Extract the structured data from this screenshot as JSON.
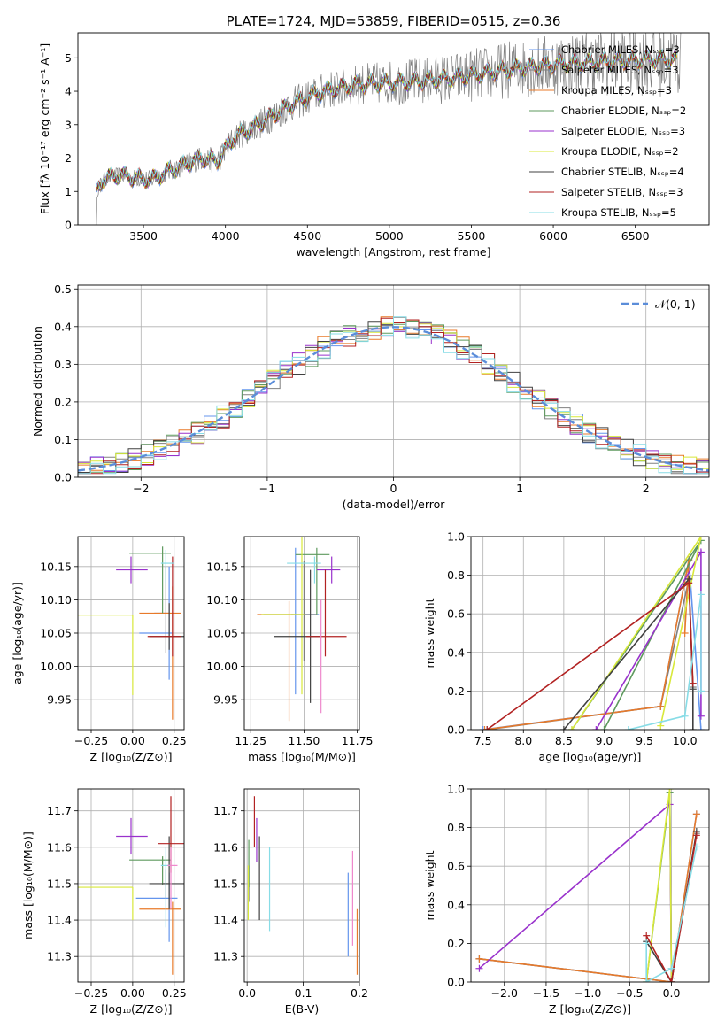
{
  "chart_data": [
    {
      "id": "spectrum",
      "type": "line",
      "title": "PLATE=1724, MJD=53859, FIBERID=0515, z=0.36",
      "xlabel": "wavelength [Angstrom, rest frame]",
      "ylabel": "Flux [fλ 10⁻¹⁷ erg cm⁻² s⁻¹ A⁻¹]",
      "xlim": [
        3100,
        6950
      ],
      "ylim": [
        0,
        5.75
      ],
      "xticks": [
        3500,
        4000,
        4500,
        5000,
        5500,
        6000,
        6500
      ],
      "yticks": [
        0,
        1,
        2,
        3,
        4,
        5
      ],
      "grid": false,
      "legend": "top-right",
      "continuum_points": {
        "x": [
          3210,
          3250,
          3350,
          3450,
          3550,
          3650,
          3750,
          3850,
          3950,
          4050,
          4200,
          4400,
          4600,
          4800,
          5000,
          5200,
          5400,
          5600,
          5800,
          6000,
          6200,
          6400,
          6600,
          6750
        ],
        "y": [
          0.95,
          1.35,
          1.5,
          1.4,
          1.35,
          1.6,
          1.8,
          2.0,
          1.9,
          2.6,
          3.0,
          3.6,
          4.0,
          4.2,
          4.25,
          4.3,
          4.4,
          4.55,
          4.7,
          4.8,
          4.85,
          4.9,
          4.95,
          4.95
        ]
      },
      "models": [
        {
          "name": "Chabrier MILES, Nₛₛₚ=3",
          "color": "#6495ed"
        },
        {
          "name": "Salpeter MILES, Nₛₛₚ=3",
          "color": "#808080"
        },
        {
          "name": "Kroupa MILES, Nₛₛₚ=3",
          "color": "#e87a2a"
        },
        {
          "name": "Chabrier ELODIE, Nₛₛₚ=2",
          "color": "#5e9a5e"
        },
        {
          "name": "Salpeter ELODIE, Nₛₛₚ=3",
          "color": "#9932cc"
        },
        {
          "name": "Kroupa ELODIE, Nₛₛₚ=2",
          "color": "#d8e83a"
        },
        {
          "name": "Chabrier STELIB, Nₛₛₚ=4",
          "color": "#404040"
        },
        {
          "name": "Salpeter STELIB, Nₛₛₚ=3",
          "color": "#b22222"
        },
        {
          "name": "Kroupa STELIB, Nₛₛₚ=5",
          "color": "#87dce6"
        }
      ]
    },
    {
      "id": "residuals",
      "type": "histogram",
      "xlabel": "(data-model)/error",
      "ylabel": "Normed distribution",
      "xlim": [
        -2.5,
        2.5
      ],
      "ylim": [
        0,
        0.51
      ],
      "xticks": [
        -2,
        -1,
        0,
        1,
        2
      ],
      "yticks": [
        0.0,
        0.1,
        0.2,
        0.3,
        0.4,
        0.5
      ],
      "grid": true,
      "legend": "top-right",
      "gauss_label": "𝒩(0, 1)",
      "gauss_color": "#5b8dd9",
      "bin_width": 0.1
    },
    {
      "id": "age-vs-Z",
      "type": "errorbar",
      "xlabel": "Z [log₁₀(Z/Z⊙)]",
      "ylabel": "age  [log₁₀(age/yr)]",
      "xlim": [
        -0.33,
        0.31
      ],
      "ylim": [
        9.905,
        10.195
      ],
      "xticks": [
        -0.25,
        0.0,
        0.25
      ],
      "yticks": [
        9.95,
        10.0,
        10.05,
        10.1,
        10.15
      ],
      "grid": true,
      "points": [
        {
          "color": "#6495ed",
          "x": 0.22,
          "xerr": [
            0.18,
            0.02
          ],
          "y": 10.05,
          "yerr": [
            0.07,
            0.1
          ]
        },
        {
          "color": "#808080",
          "x": 0.2,
          "xerr": [
            0.07,
            0.02
          ],
          "y": 10.08,
          "yerr": [
            0.06,
            0.07
          ]
        },
        {
          "color": "#e87a2a",
          "x": 0.24,
          "xerr": [
            0.2,
            0.05
          ],
          "y": 10.08,
          "yerr": [
            0.16,
            0.04
          ]
        },
        {
          "color": "#5e9a5e",
          "x": 0.18,
          "xerr": [
            0.2,
            0.05
          ],
          "y": 10.17,
          "yerr": [
            0.09,
            0.01
          ]
        },
        {
          "color": "#9932cc",
          "x": -0.01,
          "xerr": [
            0.09,
            0.1
          ],
          "y": 10.145,
          "yerr": [
            0.02,
            0.02
          ]
        },
        {
          "color": "#d8e83a",
          "x": 0.0,
          "xerr": [
            0.39,
            0.0
          ],
          "y": 10.077,
          "yerr": [
            0.12,
            0.0
          ]
        },
        {
          "color": "#404040",
          "x": 0.22,
          "xerr": [
            0.12,
            0.1
          ],
          "y": 10.045,
          "yerr": [
            0.02,
            0.05
          ]
        },
        {
          "color": "#b22222",
          "x": 0.24,
          "xerr": [
            0.15,
            0.05
          ],
          "y": 10.045,
          "yerr": [
            0.03,
            0.12
          ]
        },
        {
          "color": "#87dce6",
          "x": 0.2,
          "xerr": [
            0.03,
            0.05
          ],
          "y": 10.155,
          "yerr": [
            0.03,
            0.02
          ]
        }
      ]
    },
    {
      "id": "age-vs-mass",
      "type": "errorbar",
      "xlabel": "mass [log₁₀(M/M⊙)]",
      "ylabel": "",
      "xlim": [
        11.22,
        11.76
      ],
      "ylim": [
        9.905,
        10.195
      ],
      "xticks": [
        11.25,
        11.5,
        11.75
      ],
      "yticks": [
        9.95,
        10.0,
        10.05,
        10.1,
        10.15
      ],
      "grid": true,
      "points": [
        {
          "color": "#6495ed",
          "x": 11.46,
          "xerr": [
            0.15,
            0.11
          ],
          "y": 10.078,
          "yerr": [
            0.12,
            0.1
          ]
        },
        {
          "color": "#808080",
          "x": 11.5,
          "xerr": [
            0.06,
            0.06
          ],
          "y": 10.078,
          "yerr": [
            0.07,
            0.08
          ]
        },
        {
          "color": "#e87a2a",
          "x": 11.43,
          "xerr": [
            0.15,
            0.02
          ],
          "y": 10.078,
          "yerr": [
            0.16,
            0.02
          ]
        },
        {
          "color": "#5e9a5e",
          "x": 11.56,
          "xerr": [
            0.1,
            0.06
          ],
          "y": 10.168,
          "yerr": [
            0.09,
            0.01
          ]
        },
        {
          "color": "#9932cc",
          "x": 11.63,
          "xerr": [
            0.07,
            0.04
          ],
          "y": 10.145,
          "yerr": [
            0.02,
            0.02
          ]
        },
        {
          "color": "#d8e83a",
          "x": 11.49,
          "xerr": [
            0.19,
            0.01
          ],
          "y": 10.078,
          "yerr": [
            0.12,
            0.12
          ]
        },
        {
          "color": "#404040",
          "x": 11.53,
          "xerr": [
            0.17,
            0.05
          ],
          "y": 10.045,
          "yerr": [
            0.1,
            0.1
          ]
        },
        {
          "color": "#b22222",
          "x": 11.6,
          "xerr": [
            0.09,
            0.1
          ],
          "y": 10.045,
          "yerr": [
            0.03,
            0.1
          ]
        },
        {
          "color": "#87dce6",
          "x": 11.55,
          "xerr": [
            0.13,
            0.03
          ],
          "y": 10.155,
          "yerr": [
            0.03,
            0.01
          ]
        },
        {
          "color": "#ee88cc",
          "x": 11.58,
          "xerr": [
            0.0,
            0.0
          ],
          "y": 10.05,
          "yerr": [
            0.12,
            0.05
          ]
        }
      ]
    },
    {
      "id": "weight-vs-age",
      "type": "line",
      "xlabel": "age  [log₁₀(age/yr)]",
      "ylabel": "mass weight",
      "xlim": [
        7.35,
        10.3
      ],
      "ylim": [
        0,
        1.0
      ],
      "xticks": [
        7.5,
        8.0,
        8.5,
        9.0,
        9.5,
        10.0
      ],
      "yticks": [
        0.0,
        0.2,
        0.4,
        0.6,
        0.8,
        1.0
      ],
      "grid": true,
      "series": [
        {
          "color": "#6495ed",
          "x": [
            7.5,
            9.7,
            10.05,
            10.2
          ],
          "y": [
            0.0,
            0.12,
            0.88,
            0.0
          ]
        },
        {
          "color": "#808080",
          "x": [
            7.55,
            9.7,
            10.05,
            10.1
          ],
          "y": [
            0.0,
            0.12,
            0.78,
            0.22
          ]
        },
        {
          "color": "#e87a2a",
          "x": [
            7.52,
            9.7,
            10.05,
            10.0
          ],
          "y": [
            0.0,
            0.12,
            0.88,
            0.5
          ]
        },
        {
          "color": "#5e9a5e",
          "x": [
            8.6,
            10.2,
            9.0
          ],
          "y": [
            0.0,
            0.98,
            0.0
          ]
        },
        {
          "color": "#9932cc",
          "x": [
            8.9,
            10.2,
            10.2
          ],
          "y": [
            0.0,
            0.92,
            0.07
          ]
        },
        {
          "color": "#d8e83a",
          "x": [
            8.6,
            10.2,
            9.7
          ],
          "y": [
            0.0,
            1.0,
            0.02
          ]
        },
        {
          "color": "#404040",
          "x": [
            8.5,
            10.05,
            10.1,
            10.1
          ],
          "y": [
            0.0,
            0.78,
            0.21,
            0.0
          ]
        },
        {
          "color": "#b22222",
          "x": [
            7.55,
            10.05,
            10.1
          ],
          "y": [
            0.0,
            0.76,
            0.24
          ]
        },
        {
          "color": "#87dce6",
          "x": [
            9.3,
            10.0,
            10.2,
            10.2
          ],
          "y": [
            0.0,
            0.07,
            0.7,
            0.2
          ]
        }
      ]
    },
    {
      "id": "mass-vs-Z",
      "type": "errorbar",
      "xlabel": "Z [log₁₀(Z/Z⊙)]",
      "ylabel": "mass [log₁₀(M/M⊙)]",
      "xlim": [
        -0.33,
        0.31
      ],
      "ylim": [
        11.23,
        11.76
      ],
      "xticks": [
        -0.25,
        0.0,
        0.25
      ],
      "yticks": [
        11.3,
        11.4,
        11.5,
        11.6,
        11.7
      ],
      "grid": true,
      "points": [
        {
          "color": "#6495ed",
          "x": 0.22,
          "xerr": [
            0.2,
            0.05
          ],
          "y": 11.46,
          "yerr": [
            0.12,
            0.07
          ]
        },
        {
          "color": "#808080",
          "x": 0.2,
          "xerr": [
            0.02,
            0.02
          ],
          "y": 11.5,
          "yerr": [
            0.04,
            0.04
          ]
        },
        {
          "color": "#e87a2a",
          "x": 0.24,
          "xerr": [
            0.2,
            0.05
          ],
          "y": 11.43,
          "yerr": [
            0.18,
            0.02
          ]
        },
        {
          "color": "#5e9a5e",
          "x": 0.18,
          "xerr": [
            0.2,
            0.05
          ],
          "y": 11.565,
          "yerr": [
            0.07,
            0.01
          ]
        },
        {
          "color": "#9932cc",
          "x": -0.01,
          "xerr": [
            0.09,
            0.1
          ],
          "y": 11.63,
          "yerr": [
            0.05,
            0.05
          ]
        },
        {
          "color": "#d8e83a",
          "x": 0.0,
          "xerr": [
            0.39,
            0.0
          ],
          "y": 11.49,
          "yerr": [
            0.09,
            0.0
          ]
        },
        {
          "color": "#404040",
          "x": 0.22,
          "xerr": [
            0.12,
            0.1
          ],
          "y": 11.5,
          "yerr": [
            0.07,
            0.13
          ]
        },
        {
          "color": "#b22222",
          "x": 0.23,
          "xerr": [
            0.08,
            0.08
          ],
          "y": 11.61,
          "yerr": [
            0.08,
            0.13
          ]
        },
        {
          "color": "#87dce6",
          "x": 0.2,
          "xerr": [
            0.03,
            0.03
          ],
          "y": 11.55,
          "yerr": [
            0.17,
            0.05
          ]
        },
        {
          "color": "#ee88cc",
          "x": 0.23,
          "xerr": [
            0.02,
            0.04
          ],
          "y": 11.55,
          "yerr": [
            0.12,
            0.05
          ]
        }
      ]
    },
    {
      "id": "mass-vs-ebv",
      "type": "errorbar",
      "xlabel": "E(B-V)",
      "ylabel": "",
      "xlim": [
        -0.005,
        0.2
      ],
      "ylim": [
        11.23,
        11.76
      ],
      "xticks": [
        0.0,
        0.1,
        0.2
      ],
      "yticks": [
        11.3,
        11.4,
        11.5,
        11.6,
        11.7
      ],
      "grid": true,
      "points": [
        {
          "color": "#6495ed",
          "x": 0.18,
          "xerr": [
            0.0,
            0.0
          ],
          "y": 11.42,
          "yerr": [
            0.12,
            0.11
          ]
        },
        {
          "color": "#808080",
          "x": 0.003,
          "xerr": [
            0.0,
            0.0
          ],
          "y": 11.5,
          "yerr": [
            0.05,
            0.05
          ]
        },
        {
          "color": "#e87a2a",
          "x": 0.196,
          "xerr": [
            0.0,
            0.0
          ],
          "y": 11.38,
          "yerr": [
            0.13,
            0.05
          ]
        },
        {
          "color": "#5e9a5e",
          "x": 0.003,
          "xerr": [
            0.0,
            0.0
          ],
          "y": 11.55,
          "yerr": [
            0.06,
            0.07
          ]
        },
        {
          "color": "#9932cc",
          "x": 0.017,
          "xerr": [
            0.0,
            0.0
          ],
          "y": 11.6,
          "yerr": [
            0.04,
            0.08
          ]
        },
        {
          "color": "#d8e83a",
          "x": 0.002,
          "xerr": [
            0.0,
            0.0
          ],
          "y": 11.47,
          "yerr": [
            0.07,
            0.08
          ]
        },
        {
          "color": "#404040",
          "x": 0.022,
          "xerr": [
            0.0,
            0.0
          ],
          "y": 11.52,
          "yerr": [
            0.12,
            0.11
          ]
        },
        {
          "color": "#b22222",
          "x": 0.013,
          "xerr": [
            0.0,
            0.0
          ],
          "y": 11.65,
          "yerr": [
            0.05,
            0.09
          ]
        },
        {
          "color": "#87dce6",
          "x": 0.04,
          "xerr": [
            0.0,
            0.0
          ],
          "y": 11.48,
          "yerr": [
            0.11,
            0.12
          ]
        },
        {
          "color": "#ee88cc",
          "x": 0.188,
          "xerr": [
            0.0,
            0.0
          ],
          "y": 11.46,
          "yerr": [
            0.13,
            0.13
          ]
        }
      ]
    },
    {
      "id": "weight-vs-Z",
      "type": "line",
      "xlabel": "Z [log₁₀(Z/Z⊙)]",
      "ylabel": "mass weight",
      "xlim": [
        -2.4,
        0.45
      ],
      "ylim": [
        0,
        1.0
      ],
      "xticks": [
        -2.0,
        -1.5,
        -1.0,
        -0.5,
        0.0
      ],
      "yticks": [
        0.0,
        0.2,
        0.4,
        0.6,
        0.8,
        1.0
      ],
      "grid": true,
      "series": [
        {
          "color": "#6495ed",
          "x": [
            -2.3,
            0.0,
            0.3
          ],
          "y": [
            0.12,
            0.0,
            0.87
          ]
        },
        {
          "color": "#808080",
          "x": [
            -2.3,
            0.0,
            0.3
          ],
          "y": [
            0.12,
            0.0,
            0.77
          ]
        },
        {
          "color": "#e87a2a",
          "x": [
            -2.3,
            0.0,
            0.3
          ],
          "y": [
            0.12,
            0.0,
            0.87
          ]
        },
        {
          "color": "#5e9a5e",
          "x": [
            -0.3,
            -0.02,
            0.0
          ],
          "y": [
            0.0,
            0.98,
            0.02
          ]
        },
        {
          "color": "#9932cc",
          "x": [
            -2.3,
            -0.02,
            0.0
          ],
          "y": [
            0.07,
            0.92,
            0.0
          ]
        },
        {
          "color": "#d8e83a",
          "x": [
            -0.3,
            -0.02,
            0.0
          ],
          "y": [
            0.0,
            1.0,
            0.0
          ]
        },
        {
          "color": "#404040",
          "x": [
            -0.3,
            0.0,
            0.3
          ],
          "y": [
            0.21,
            0.0,
            0.78
          ]
        },
        {
          "color": "#b22222",
          "x": [
            -0.3,
            0.0,
            0.3
          ],
          "y": [
            0.24,
            0.0,
            0.76
          ]
        },
        {
          "color": "#87dce6",
          "x": [
            -0.3,
            -0.3,
            0.0,
            0.3
          ],
          "y": [
            0.2,
            0.0,
            0.07,
            0.7
          ]
        }
      ]
    }
  ]
}
